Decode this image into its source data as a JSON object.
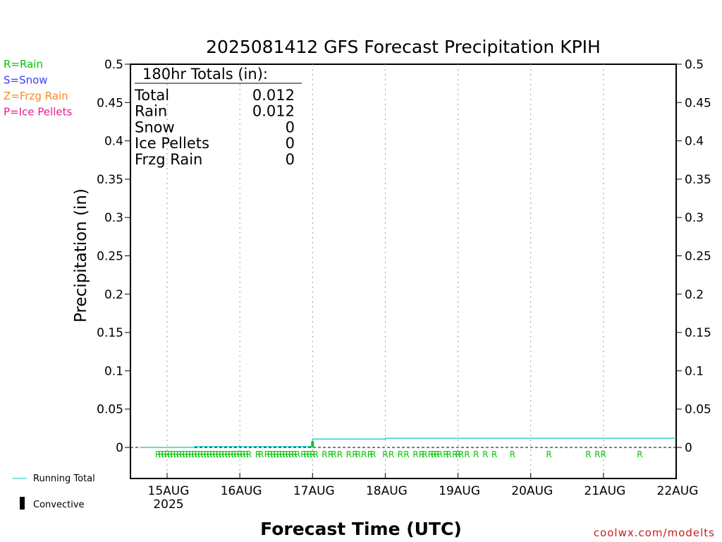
{
  "chart_data": {
    "type": "line",
    "title": "2025081412 GFS Forecast Precipitation KPIH",
    "xlabel": "Forecast Time (UTC)",
    "ylabel": "Precipitation (in)",
    "ylim": [
      0,
      0.5
    ],
    "yticks": [
      "0",
      "0.05",
      "0.1",
      "0.15",
      "0.2",
      "0.25",
      "0.3",
      "0.35",
      "0.4",
      "0.45",
      "0.5"
    ],
    "xlim_hours_from_15AUG00": [
      -9,
      168
    ],
    "xticks": [
      {
        "label": "15AUG",
        "sublabel": "2025",
        "hour": 0
      },
      {
        "label": "16AUG",
        "hour": 24
      },
      {
        "label": "17AUG",
        "hour": 48
      },
      {
        "label": "18AUG",
        "hour": 72
      },
      {
        "label": "19AUG",
        "hour": 96
      },
      {
        "label": "20AUG",
        "hour": 120
      },
      {
        "label": "21AUG",
        "hour": 144
      },
      {
        "label": "22AUG",
        "hour": 168
      }
    ],
    "grid": "vertical dotted at day ticks",
    "series": [
      {
        "name": "Running Total",
        "color": "#00c8c8",
        "points": [
          [
            -9,
            0
          ],
          [
            9,
            0
          ],
          [
            9,
            0.001
          ],
          [
            48,
            0.001
          ],
          [
            48,
            0.011
          ],
          [
            72,
            0.011
          ],
          [
            72,
            0.012
          ],
          [
            168,
            0.012
          ]
        ]
      },
      {
        "name": "Convective",
        "color": "#000000",
        "values_hours": [
          48
        ],
        "value_in": 0.003
      }
    ],
    "ptype_hours": [
      -3,
      -2,
      -1,
      0,
      1,
      2,
      3,
      4,
      5,
      6,
      7,
      8,
      9,
      10,
      11,
      12,
      13,
      14,
      15,
      16,
      17,
      18,
      19,
      20,
      21,
      22,
      23,
      24,
      25,
      26,
      27,
      30,
      31,
      33,
      34,
      35,
      36,
      37,
      38,
      39,
      40,
      41,
      42,
      43,
      45,
      46,
      47,
      48,
      49,
      52,
      54,
      55,
      57,
      60,
      62,
      63,
      65,
      67,
      68,
      72,
      74,
      77,
      79,
      82,
      84,
      85,
      87,
      88,
      89,
      90,
      92,
      93,
      95,
      96,
      97,
      99,
      102,
      105,
      108,
      114,
      126,
      139,
      142,
      144,
      156
    ],
    "ptype_letter": "R",
    "totals": {
      "heading": "180hr Totals (in):",
      "rows": [
        {
          "label": "Total",
          "value": "0.012"
        },
        {
          "label": "Rain",
          "value": "0.012"
        },
        {
          "label": "Snow",
          "value": "0"
        },
        {
          "label": "Ice Pellets",
          "value": "0"
        },
        {
          "label": "Frzg Rain",
          "value": "0"
        }
      ]
    },
    "ptype_legend": [
      {
        "text": "R=Rain",
        "color": "#00c800"
      },
      {
        "text": "S=Snow",
        "color": "#3c3cff"
      },
      {
        "text": "Z=Frzg Rain",
        "color": "#f08c28"
      },
      {
        "text": "P=Ice Pellets",
        "color": "#e61e8c"
      }
    ],
    "line_legend": [
      {
        "text": "Running Total",
        "color": "#00c8c8"
      },
      {
        "text": "Convective",
        "color": "#000000"
      }
    ],
    "credit": "coolwx.com/modelts"
  }
}
